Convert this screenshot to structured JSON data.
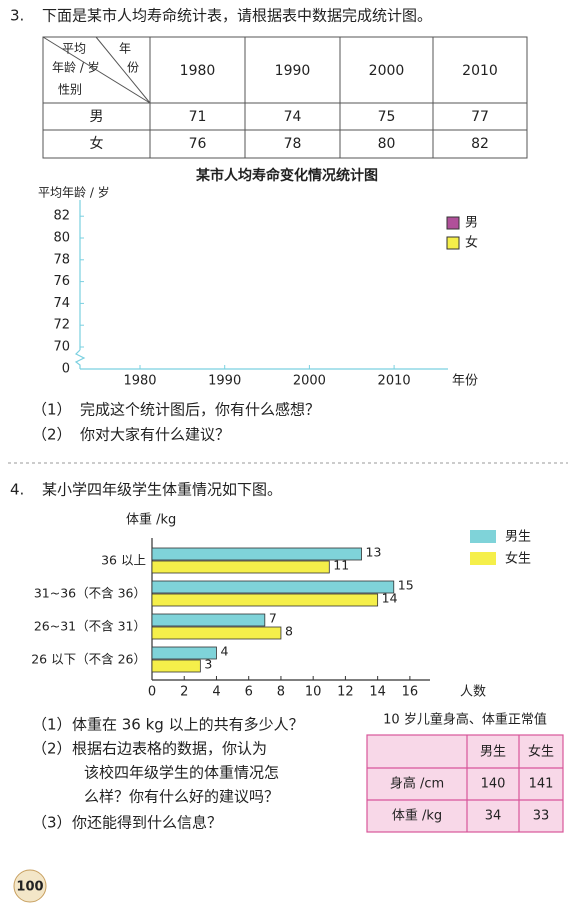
{
  "problem3": {
    "number": "3.",
    "text": "下面是某市人均寿命统计表，请根据表中数据完成统计图。",
    "table": {
      "corner": [
        "平均",
        "年",
        "年龄 / 岁",
        "份",
        "性别"
      ],
      "columns": [
        1980,
        1990,
        2000,
        2010
      ],
      "rows": [
        [
          "男",
          71,
          74,
          75,
          77
        ],
        [
          "女",
          76,
          78,
          80,
          82
        ]
      ]
    },
    "questions": [
      {
        "label": "（1）",
        "lines": [
          "完成这个统计图后，你有什么感想？"
        ]
      },
      {
        "label": "（2）",
        "lines": [
          "你对大家有什么建议？"
        ]
      }
    ]
  },
  "problem4": {
    "number": "4.",
    "text": "某小学四年级学生体重情况如下图。",
    "questions": [
      {
        "label": "（1）",
        "lines": [
          "体重在 36 kg 以上的共有多少人？"
        ]
      },
      {
        "label": "（2）",
        "lines": [
          "根据右边表格的数据，你认为",
          "该校四年级学生的体重情况怎",
          "么样？你有什么好的建议吗？"
        ]
      },
      {
        "label": "（3）",
        "lines": [
          "你还能得到什么信息？"
        ]
      }
    ],
    "table": {
      "title": "10 岁儿童身高、体重正常值",
      "columns": [
        "男生",
        "女生"
      ],
      "rows": [
        [
          "身高 /cm",
          140,
          141
        ],
        [
          "体重 /kg",
          34,
          33
        ]
      ]
    }
  },
  "chart_data": [
    {
      "type": "line",
      "title": "某市人均寿命变化情况统计图",
      "ylabel": "平均年龄 / 岁",
      "xlabel": "年份",
      "categories": [
        1980,
        1990,
        2000,
        2010
      ],
      "yticks": [
        0,
        70,
        72,
        74,
        76,
        78,
        80,
        82
      ],
      "axis_break": true,
      "legend": "top-right",
      "series": [
        {
          "name": "男",
          "color": "#b0509a"
        },
        {
          "name": "女",
          "color": "#f5ef4a"
        }
      ]
    },
    {
      "type": "bar",
      "orientation": "horizontal",
      "ylabel": "体重 /kg",
      "xlabel": "人数",
      "categories": [
        "36 以上",
        "31~36（不含 36）",
        "26~31（不含 31）",
        "26 以下（不含 26）"
      ],
      "series": [
        {
          "name": "男生",
          "color": "#7fd3d9",
          "values": [
            13,
            15,
            7,
            4
          ]
        },
        {
          "name": "女生",
          "color": "#f5ef4a",
          "values": [
            11,
            14,
            8,
            3
          ]
        }
      ],
      "xlim": [
        0,
        17
      ],
      "xticks": [
        0,
        2,
        4,
        6,
        8,
        10,
        12,
        14,
        16
      ],
      "legend": "top-right"
    }
  ],
  "page_number": "100"
}
